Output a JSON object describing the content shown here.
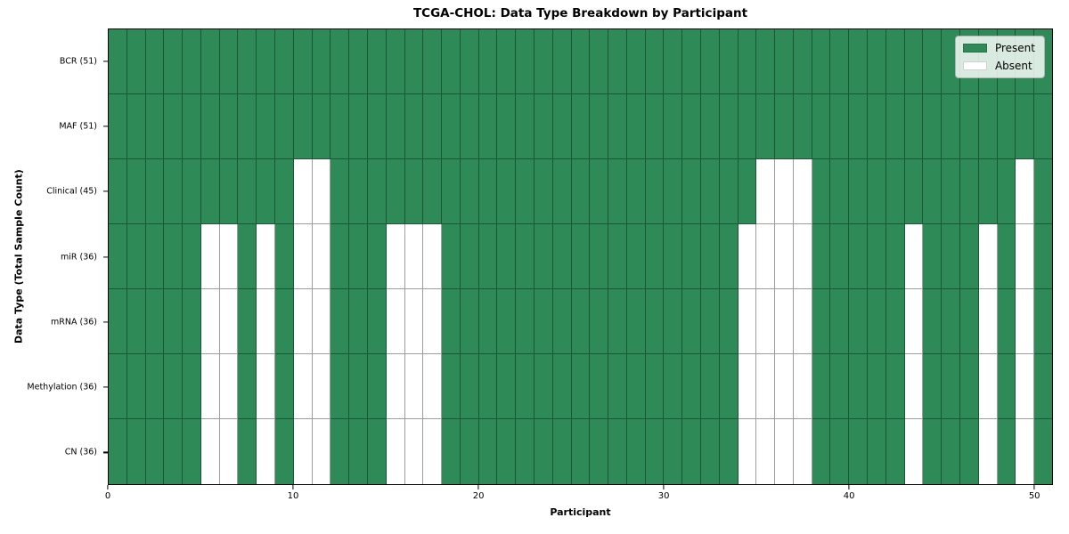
{
  "title": "TCGA-CHOL: Data Type Breakdown by Participant",
  "xlabel": "Participant",
  "ylabel": "Data Type (Total Sample Count)",
  "legend": {
    "present_label": "Present",
    "absent_label": "Absent"
  },
  "colors": {
    "present": "#2e8b57",
    "absent": "#ffffff"
  },
  "chart_data": {
    "type": "heatmap",
    "title": "TCGA-CHOL: Data Type Breakdown by Participant",
    "xlabel": "Participant",
    "ylabel": "Data Type (Total Sample Count)",
    "n_participants": 51,
    "x_range": [
      0,
      51
    ],
    "x_ticks": [
      0,
      10,
      20,
      30,
      40,
      50
    ],
    "legend_position": "upper right",
    "grid": "cell-borders",
    "cell_states": [
      "Present",
      "Absent"
    ],
    "rows": [
      {
        "label": "BCR (51)",
        "data_type": "BCR",
        "present_count": 51,
        "absent_participants": []
      },
      {
        "label": "MAF (51)",
        "data_type": "MAF",
        "present_count": 51,
        "absent_participants": []
      },
      {
        "label": "Clinical (45)",
        "data_type": "Clinical",
        "present_count": 45,
        "absent_participants": [
          10,
          11,
          35,
          36,
          37,
          49
        ]
      },
      {
        "label": "miR (36)",
        "data_type": "miR",
        "present_count": 36,
        "absent_participants": [
          5,
          6,
          8,
          10,
          11,
          15,
          16,
          17,
          34,
          35,
          36,
          37,
          43,
          47,
          49
        ]
      },
      {
        "label": "mRNA (36)",
        "data_type": "mRNA",
        "present_count": 36,
        "absent_participants": [
          5,
          6,
          8,
          10,
          11,
          15,
          16,
          17,
          34,
          35,
          36,
          37,
          43,
          47,
          49
        ]
      },
      {
        "label": "Methylation (36)",
        "data_type": "Methylation",
        "present_count": 36,
        "absent_participants": [
          5,
          6,
          8,
          10,
          11,
          15,
          16,
          17,
          34,
          35,
          36,
          37,
          43,
          47,
          49
        ]
      },
      {
        "label": "CN (36)",
        "data_type": "CN",
        "present_count": 36,
        "absent_participants": [
          5,
          6,
          8,
          10,
          11,
          15,
          16,
          17,
          34,
          35,
          36,
          37,
          43,
          47,
          49
        ]
      }
    ]
  }
}
